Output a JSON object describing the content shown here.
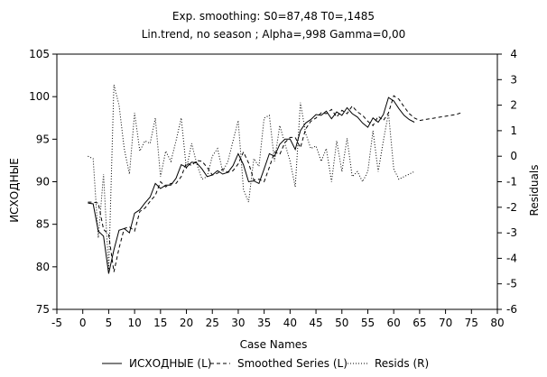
{
  "chart_data": {
    "type": "line",
    "title": "Exp. smoothing: S0=87,48 T0=,1485",
    "subtitle": "Lin.trend, no season ; Alpha=,998 Gamma=0,00",
    "xlabel": "Case Names",
    "ylabel_left": "ИСХОДНЫЕ",
    "ylabel_right": "Residuals",
    "xlim": [
      -5,
      80
    ],
    "ylim_left": [
      75,
      105
    ],
    "ylim_right": [
      -6,
      4
    ],
    "xticks": [
      "-5",
      "0",
      "5",
      "10",
      "15",
      "20",
      "25",
      "30",
      "35",
      "40",
      "45",
      "50",
      "55",
      "60",
      "65",
      "70",
      "75",
      "80"
    ],
    "yticks_left": [
      "75",
      "80",
      "85",
      "90",
      "95",
      "100",
      "105"
    ],
    "yticks_right": [
      "-6",
      "-5",
      "-4",
      "-3",
      "-2",
      "-1",
      "0",
      "1",
      "2",
      "3",
      "4"
    ],
    "grid": false,
    "legend_position": "bottom",
    "series": [
      {
        "name": "ИСХОДНЫЕ (L)",
        "axis": "left",
        "style": "solid",
        "color": "#000000",
        "x": [
          1,
          2,
          3,
          4,
          5,
          6,
          7,
          8,
          9,
          10,
          11,
          12,
          13,
          14,
          15,
          16,
          17,
          18,
          19,
          20,
          21,
          22,
          23,
          24,
          25,
          26,
          27,
          28,
          29,
          30,
          31,
          32,
          33,
          34,
          35,
          36,
          37,
          38,
          39,
          40,
          41,
          42,
          43,
          44,
          45,
          46,
          47,
          48,
          49,
          50,
          51,
          52,
          53,
          54,
          55,
          56,
          57,
          58,
          59,
          60,
          61,
          62,
          63,
          64
        ],
        "y": [
          87.5,
          87.4,
          84.2,
          83.6,
          79.2,
          82.0,
          84.3,
          84.5,
          84.0,
          86.3,
          86.7,
          87.5,
          88.2,
          89.8,
          89.2,
          89.6,
          89.6,
          90.4,
          92.0,
          91.7,
          92.3,
          92.2,
          91.5,
          90.6,
          90.8,
          91.3,
          90.9,
          91.1,
          91.9,
          93.3,
          92.0,
          90.0,
          90.1,
          89.8,
          91.5,
          93.3,
          93.0,
          94.4,
          95.0,
          95.0,
          93.8,
          96.0,
          96.9,
          97.3,
          97.9,
          97.8,
          98.3,
          97.4,
          98.2,
          97.8,
          98.7,
          98.0,
          97.6,
          96.9,
          96.4,
          97.5,
          97.0,
          97.9,
          99.9,
          99.5,
          98.6,
          97.8,
          97.3,
          97.0
        ]
      },
      {
        "name": "Smoothed Series (L)",
        "axis": "left",
        "style": "dashed",
        "color": "#000000",
        "x": [
          1,
          2,
          3,
          4,
          5,
          6,
          7,
          8,
          9,
          10,
          11,
          12,
          13,
          14,
          15,
          16,
          17,
          18,
          19,
          20,
          21,
          22,
          23,
          24,
          25,
          26,
          27,
          28,
          29,
          30,
          31,
          32,
          33,
          34,
          35,
          36,
          37,
          38,
          39,
          40,
          41,
          42,
          43,
          44,
          45,
          46,
          47,
          48,
          49,
          50,
          51,
          52,
          53,
          54,
          55,
          56,
          57,
          58,
          59,
          60,
          61,
          62,
          63,
          64,
          65,
          66,
          67,
          68,
          69,
          70,
          71,
          72,
          73
        ],
        "y": [
          87.6,
          87.6,
          87.5,
          84.4,
          83.8,
          79.4,
          82.2,
          84.5,
          84.7,
          84.2,
          86.5,
          86.9,
          87.7,
          88.4,
          90.0,
          89.4,
          89.8,
          89.8,
          90.6,
          92.2,
          91.9,
          92.5,
          92.4,
          91.7,
          90.8,
          91.0,
          91.5,
          91.1,
          91.3,
          92.1,
          93.5,
          92.2,
          90.2,
          90.3,
          90.0,
          91.7,
          93.5,
          93.2,
          94.6,
          95.2,
          95.2,
          94.0,
          96.2,
          97.1,
          97.5,
          98.1,
          98.0,
          98.5,
          97.6,
          98.4,
          98.0,
          98.9,
          98.2,
          97.8,
          97.1,
          96.6,
          97.7,
          97.2,
          98.1,
          100.1,
          99.7,
          98.8,
          98.0,
          97.5,
          97.2,
          97.3,
          97.4,
          97.5,
          97.6,
          97.7,
          97.8,
          97.9,
          98.1
        ]
      },
      {
        "name": "Resids (R)",
        "axis": "right",
        "style": "dotted",
        "color": "#000000",
        "x": [
          1,
          2,
          3,
          4,
          5,
          6,
          7,
          8,
          9,
          10,
          11,
          12,
          13,
          14,
          15,
          16,
          17,
          18,
          19,
          20,
          21,
          22,
          23,
          24,
          25,
          26,
          27,
          28,
          29,
          30,
          31,
          32,
          33,
          34,
          35,
          36,
          37,
          38,
          39,
          40,
          41,
          42,
          43,
          44,
          45,
          46,
          47,
          48,
          49,
          50,
          51,
          52,
          53,
          54,
          55,
          56,
          57,
          58,
          59,
          60,
          61,
          62,
          63,
          64
        ],
        "y": [
          0.0,
          -0.1,
          -3.2,
          -0.7,
          -4.5,
          2.8,
          2.0,
          0.3,
          -0.7,
          1.7,
          0.2,
          0.6,
          0.5,
          1.5,
          -0.8,
          0.2,
          -0.2,
          0.6,
          1.5,
          -0.5,
          0.5,
          -0.3,
          -0.9,
          -0.8,
          0.0,
          0.3,
          -0.6,
          -0.2,
          0.6,
          1.4,
          -1.3,
          -1.8,
          -0.1,
          -0.4,
          1.5,
          1.6,
          -0.2,
          1.2,
          0.5,
          -0.2,
          -1.2,
          2.1,
          0.9,
          0.3,
          0.4,
          -0.2,
          0.3,
          -1.0,
          0.6,
          -0.6,
          0.7,
          -0.8,
          -0.6,
          -1.0,
          -0.6,
          1.0,
          -0.6,
          0.6,
          1.7,
          -0.5,
          -0.9,
          -0.8,
          -0.7,
          -0.6
        ]
      }
    ]
  }
}
